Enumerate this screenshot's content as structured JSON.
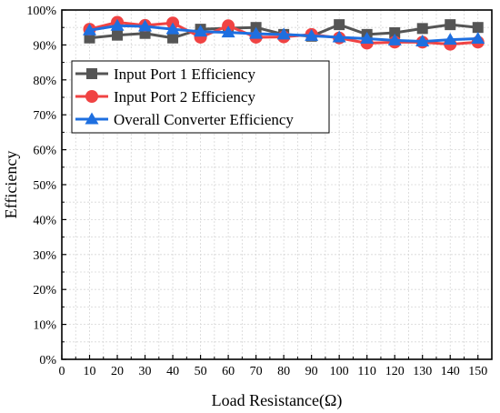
{
  "chart_data": {
    "type": "line",
    "title": "",
    "xlabel": "Load Resistance(Ω)",
    "ylabel": "Efficiency",
    "xlim": [
      0,
      155
    ],
    "ylim": [
      0,
      100
    ],
    "x_ticks": [
      0,
      10,
      20,
      30,
      40,
      50,
      60,
      70,
      80,
      90,
      100,
      110,
      120,
      130,
      140,
      150
    ],
    "y_ticks": [
      0,
      10,
      20,
      30,
      40,
      50,
      60,
      70,
      80,
      90,
      100
    ],
    "y_tick_labels": [
      "0%",
      "10%",
      "20%",
      "30%",
      "40%",
      "50%",
      "60%",
      "70%",
      "80%",
      "90%",
      "100%"
    ],
    "grid": "dashed minor grid",
    "legend_position": "top-left",
    "x": [
      10,
      20,
      30,
      40,
      50,
      60,
      70,
      80,
      90,
      100,
      110,
      120,
      130,
      140,
      150
    ],
    "series": [
      {
        "name": "Input Port 1 Efficiency",
        "color": "#555555",
        "marker": "square",
        "values": [
          92.0,
          92.8,
          93.3,
          92.0,
          94.5,
          94.8,
          95.0,
          93.0,
          92.5,
          95.8,
          93.0,
          93.5,
          94.7,
          95.8,
          95.0
        ]
      },
      {
        "name": "Input Port 2 Efficiency",
        "color": "#f04343",
        "marker": "circle",
        "values": [
          94.5,
          96.5,
          95.6,
          96.3,
          92.2,
          95.5,
          92.2,
          92.3,
          93.0,
          92.0,
          90.5,
          90.8,
          90.8,
          90.2,
          90.8
        ]
      },
      {
        "name": "Overall Converter Efficiency",
        "color": "#1e6fe0",
        "marker": "triangle",
        "values": [
          94.2,
          95.5,
          95.3,
          94.5,
          93.8,
          93.6,
          93.2,
          93.0,
          92.6,
          92.2,
          91.8,
          91.3,
          91.0,
          91.5,
          91.8
        ]
      }
    ]
  }
}
